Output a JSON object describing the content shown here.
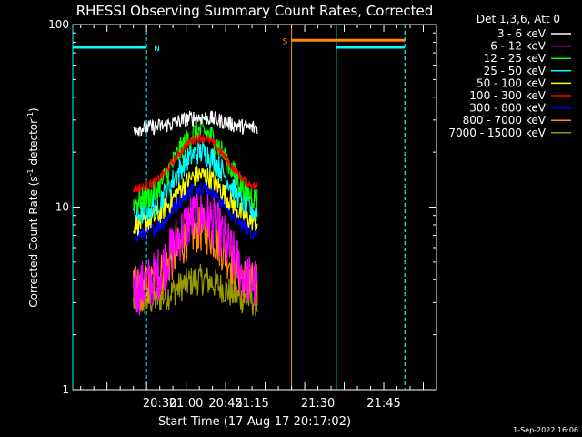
{
  "chart_data": {
    "type": "line",
    "title": "RHESSI Observing Summary Count Rates, Corrected",
    "xlabel": "Start Time (17-Aug-17 20:17:02)",
    "ylabel": "Corrected Count Rate (s⁻¹ detector⁻¹)",
    "ylabel_parts": [
      "Corrected Count Rate (s",
      "-1",
      " detector",
      "-1",
      ")"
    ],
    "y_scale": "log",
    "ylim": [
      1,
      100
    ],
    "y_ticks": [
      1,
      10,
      100
    ],
    "x_unit": "minutes after 20:17:02",
    "xlim": [
      20.17,
      21.95
    ],
    "x_ticks": [
      {
        "value": 20.5,
        "label": "20:30"
      },
      {
        "value": 20.75,
        "label": "20:45"
      },
      {
        "value": 21.0,
        "label": "21:00"
      },
      {
        "value": 21.25,
        "label": "21:15"
      },
      {
        "value": 21.5,
        "label": "21:30"
      },
      {
        "value": 21.75,
        "label": "21:45"
      }
    ],
    "legend_title": "Det 1,3,6, Att 0",
    "legend_position": "right",
    "data_start": 20.4,
    "data_end": 21.27,
    "series": [
      {
        "name": "3 - 6 keV",
        "color": "#ffffff",
        "base": 27,
        "peak": 31,
        "noise": 0.1
      },
      {
        "name": "6 - 12 keV",
        "color": "#ff00ff",
        "base": 3.5,
        "peak": 9,
        "noise": 0.35
      },
      {
        "name": "12 - 25 keV",
        "color": "#00ff00",
        "base": 10.5,
        "peak": 26,
        "noise": 0.16
      },
      {
        "name": "25 - 50 keV",
        "color": "#00ffff",
        "base": 9,
        "peak": 20,
        "noise": 0.16
      },
      {
        "name": "50 - 100 keV",
        "color": "#ffff00",
        "base": 8,
        "peak": 15,
        "noise": 0.14
      },
      {
        "name": "100 - 300 keV",
        "color": "#ff0000",
        "base": 12.5,
        "peak": 24,
        "noise": 0.06
      },
      {
        "name": "300 - 800 keV",
        "color": "#0000ff",
        "base": 7,
        "peak": 13,
        "noise": 0.1
      },
      {
        "name": "800 - 7000 keV",
        "color": "#ff8c00",
        "base": 3.5,
        "peak": 7.5,
        "noise": 0.3
      },
      {
        "name": "7000 - 15000 keV",
        "color": "#9a9a00",
        "base": 3,
        "peak": 4,
        "noise": 0.2
      }
    ],
    "markers": [
      {
        "label": "N",
        "color": "#00ffff",
        "bar_from": 20.17,
        "bar_to": 20.45,
        "level": 75,
        "solid": 20.17,
        "dashed": 20.45
      },
      {
        "label": "S",
        "color": "#ff8c00",
        "bar_from": 21.4,
        "bar_to": 21.83,
        "level": 82,
        "solid": 21.4,
        "dashed": 21.83
      },
      {
        "label": "",
        "color": "#00ffff",
        "bar_from": 21.57,
        "bar_to": 21.83,
        "level": 75,
        "solid": 21.57,
        "dashed": 21.83
      }
    ]
  },
  "footer": {
    "date": "1-Sep-2022 16:06"
  }
}
